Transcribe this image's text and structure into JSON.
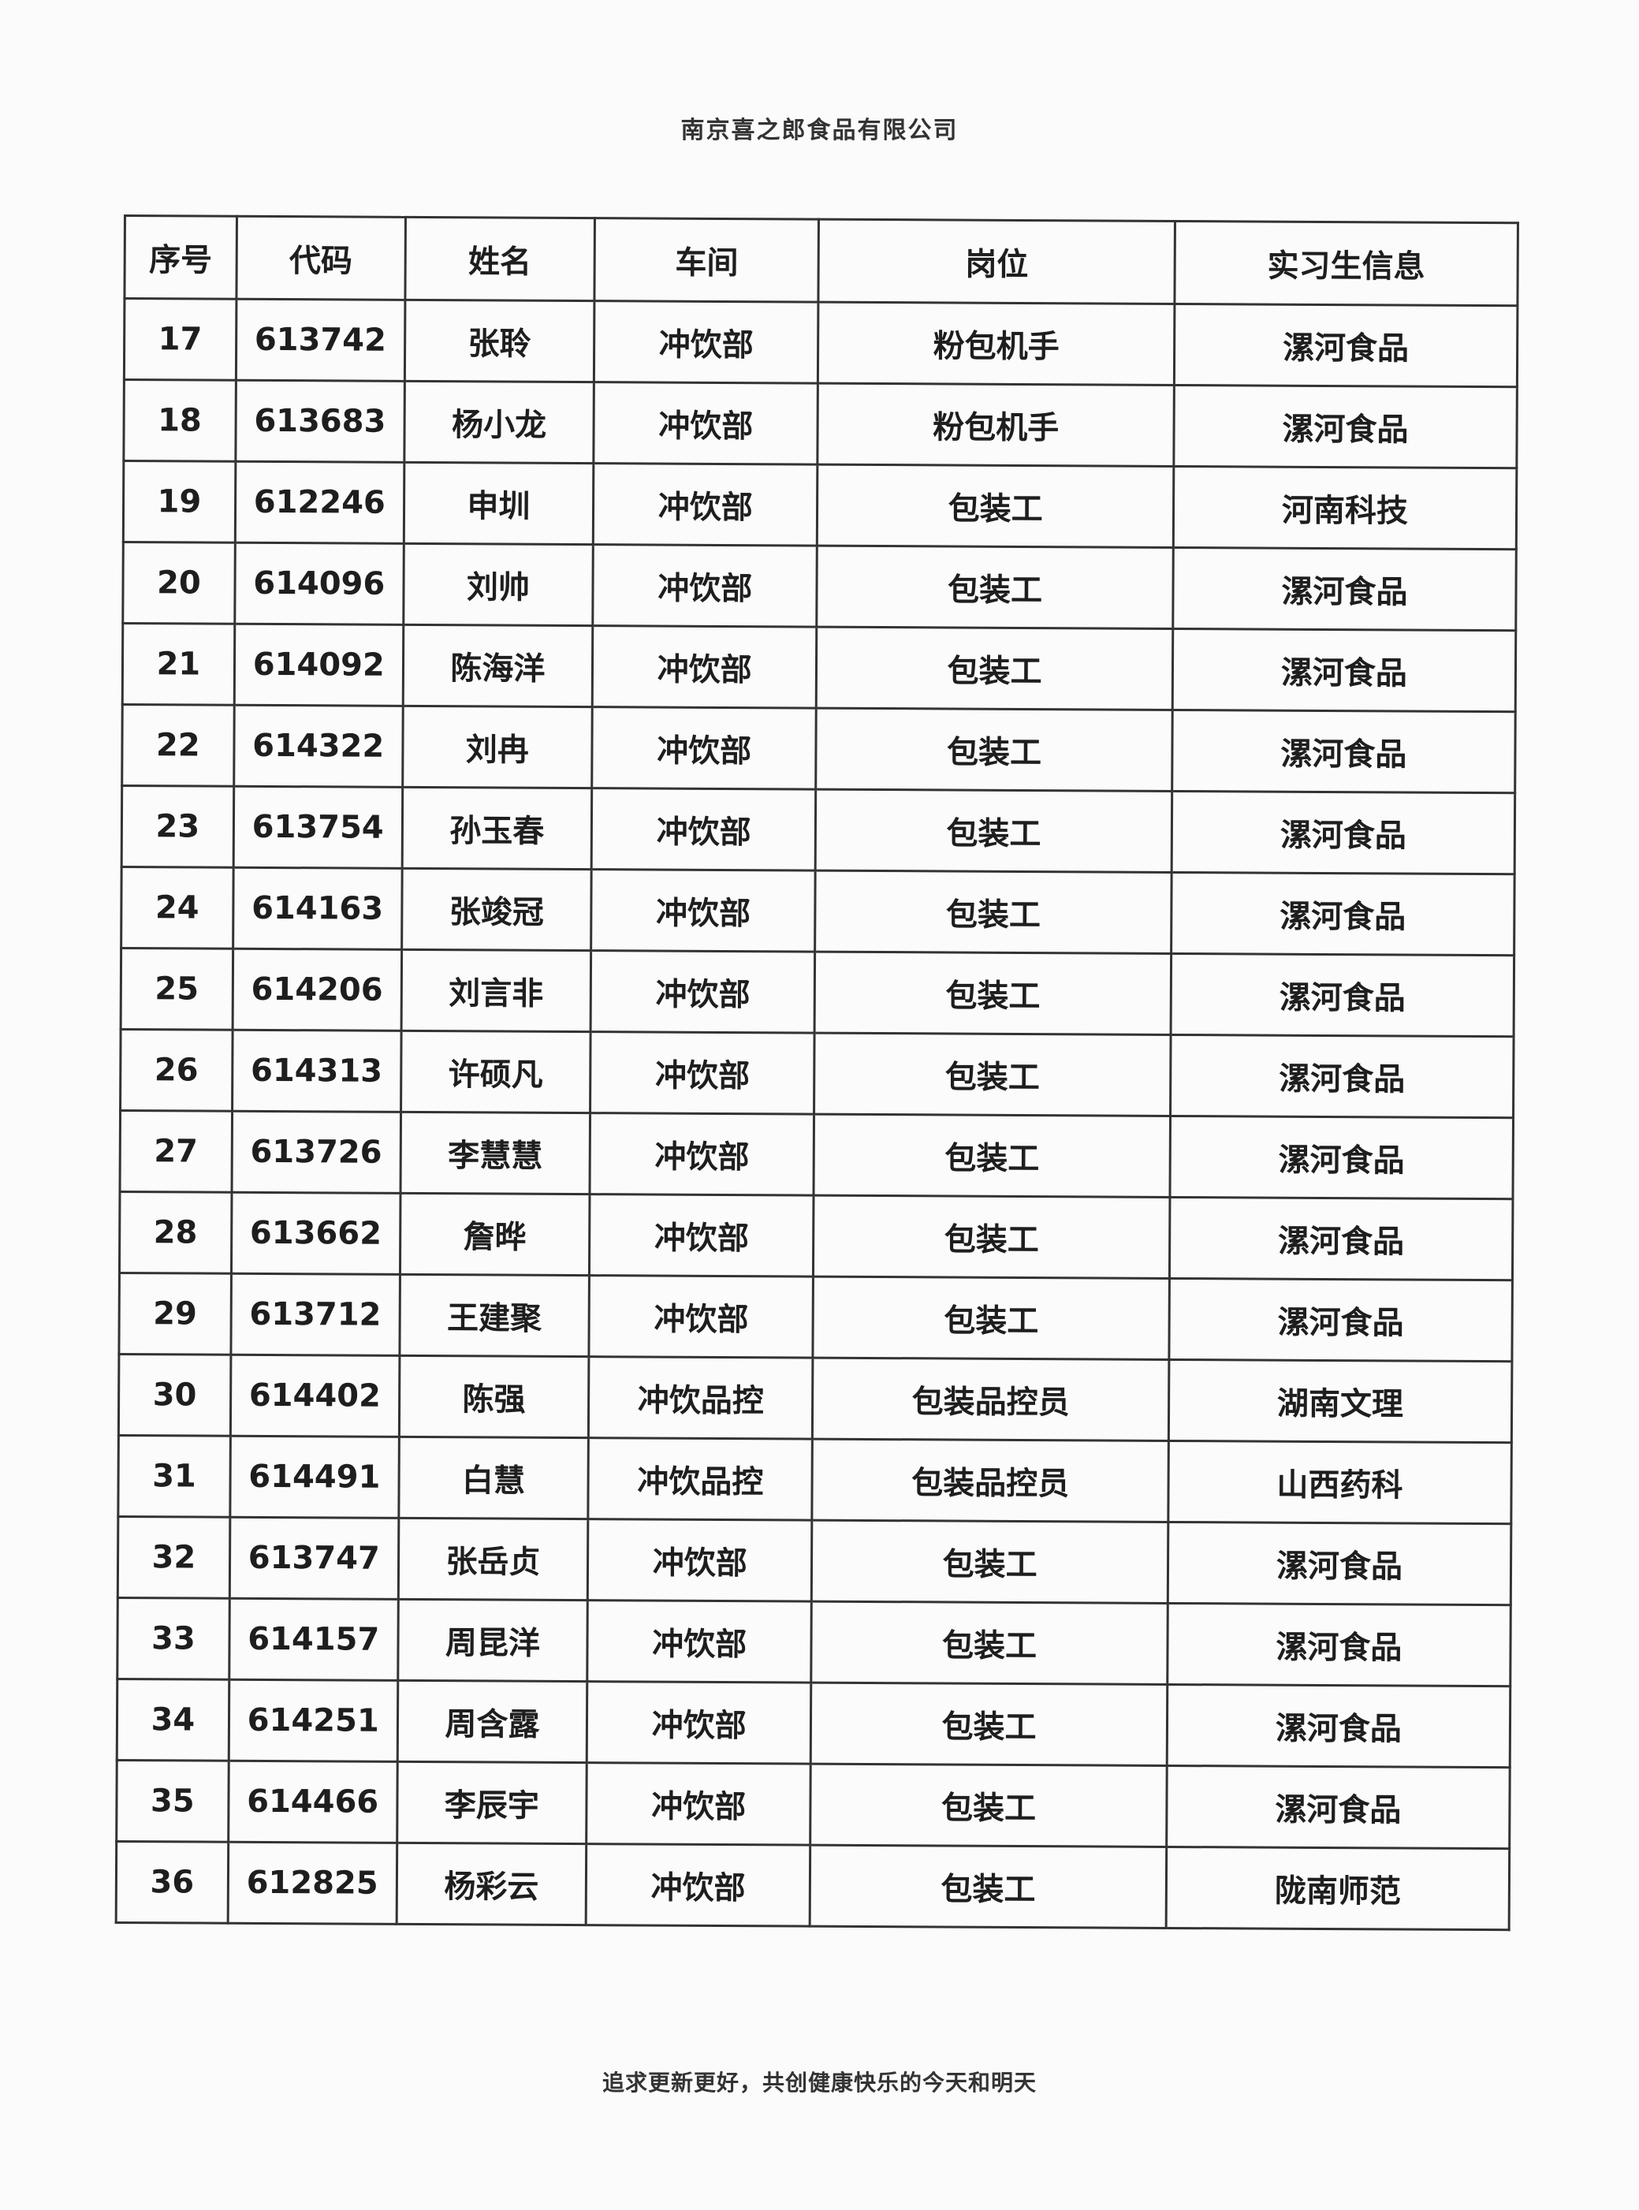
{
  "document": {
    "header": "南京喜之郎食品有限公司",
    "footer": "追求更新更好，共创健康快乐的今天和明天"
  },
  "table": {
    "columns": [
      "序号",
      "代码",
      "姓名",
      "车间",
      "岗位",
      "实习生信息"
    ],
    "rows": [
      [
        "17",
        "613742",
        "张聆",
        "冲饮部",
        "粉包机手",
        "漯河食品"
      ],
      [
        "18",
        "613683",
        "杨小龙",
        "冲饮部",
        "粉包机手",
        "漯河食品"
      ],
      [
        "19",
        "612246",
        "申圳",
        "冲饮部",
        "包装工",
        "河南科技"
      ],
      [
        "20",
        "614096",
        "刘帅",
        "冲饮部",
        "包装工",
        "漯河食品"
      ],
      [
        "21",
        "614092",
        "陈海洋",
        "冲饮部",
        "包装工",
        "漯河食品"
      ],
      [
        "22",
        "614322",
        "刘冉",
        "冲饮部",
        "包装工",
        "漯河食品"
      ],
      [
        "23",
        "613754",
        "孙玉春",
        "冲饮部",
        "包装工",
        "漯河食品"
      ],
      [
        "24",
        "614163",
        "张竣冠",
        "冲饮部",
        "包装工",
        "漯河食品"
      ],
      [
        "25",
        "614206",
        "刘言非",
        "冲饮部",
        "包装工",
        "漯河食品"
      ],
      [
        "26",
        "614313",
        "许硕凡",
        "冲饮部",
        "包装工",
        "漯河食品"
      ],
      [
        "27",
        "613726",
        "李慧慧",
        "冲饮部",
        "包装工",
        "漯河食品"
      ],
      [
        "28",
        "613662",
        "詹晔",
        "冲饮部",
        "包装工",
        "漯河食品"
      ],
      [
        "29",
        "613712",
        "王建聚",
        "冲饮部",
        "包装工",
        "漯河食品"
      ],
      [
        "30",
        "614402",
        "陈强",
        "冲饮品控",
        "包装品控员",
        "湖南文理"
      ],
      [
        "31",
        "614491",
        "白慧",
        "冲饮品控",
        "包装品控员",
        "山西药科"
      ],
      [
        "32",
        "613747",
        "张岳贞",
        "冲饮部",
        "包装工",
        "漯河食品"
      ],
      [
        "33",
        "614157",
        "周昆洋",
        "冲饮部",
        "包装工",
        "漯河食品"
      ],
      [
        "34",
        "614251",
        "周含露",
        "冲饮部",
        "包装工",
        "漯河食品"
      ],
      [
        "35",
        "614466",
        "李辰宇",
        "冲饮部",
        "包装工",
        "漯河食品"
      ],
      [
        "36",
        "612825",
        "杨彩云",
        "冲饮部",
        "包装工",
        "陇南师范"
      ]
    ]
  }
}
